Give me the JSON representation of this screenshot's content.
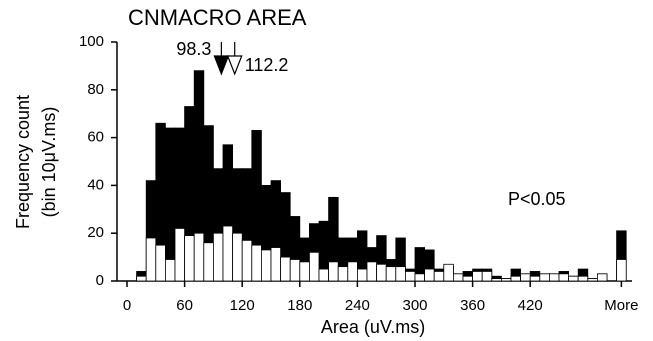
{
  "chart_data": {
    "type": "histogram",
    "title": "CNMACRO AREA",
    "x_label": "Area (uV.ms)",
    "y_label": [
      "Frequency count",
      "(bin 10μV.ms)"
    ],
    "bins": [
      10,
      20,
      30,
      40,
      50,
      60,
      70,
      80,
      90,
      100,
      110,
      120,
      130,
      140,
      150,
      160,
      170,
      180,
      190,
      200,
      210,
      220,
      230,
      240,
      250,
      260,
      270,
      280,
      290,
      300,
      310,
      320,
      330,
      340,
      350,
      360,
      370,
      380,
      390,
      400,
      410,
      420,
      430,
      440,
      450,
      460,
      470,
      480,
      490,
      500,
      510,
      520
    ],
    "series": [
      {
        "color": "#000000",
        "values": [
          4,
          42,
          66,
          64,
          64,
          73,
          88,
          65,
          47,
          57,
          47,
          47,
          63,
          40,
          42,
          37,
          27,
          18,
          24,
          25,
          35,
          18,
          18,
          21,
          14,
          19,
          9,
          18,
          5,
          14,
          13,
          5,
          6,
          3,
          4,
          5,
          5,
          2,
          1,
          5,
          3,
          4,
          3,
          3,
          4,
          2,
          5,
          1,
          3,
          0,
          21
        ]
      },
      {
        "color": "#ffffff",
        "values": [
          2,
          18,
          15,
          9,
          22,
          19,
          20,
          16,
          20,
          23,
          20,
          17,
          15,
          13,
          14,
          10,
          9,
          8,
          12,
          5,
          8,
          6,
          8,
          5,
          8,
          7,
          6,
          6,
          4,
          3,
          5,
          4,
          7,
          3,
          2,
          4,
          4,
          1,
          1,
          2,
          3,
          2,
          3,
          3,
          3,
          2,
          2,
          1,
          3,
          0,
          9
        ]
      }
    ],
    "means": [
      98.3,
      112.2
    ],
    "annotation": "P<0.05",
    "xlim": [
      0,
      520
    ],
    "xticks": [
      0,
      60,
      120,
      180,
      240,
      300,
      360,
      420,
      {
        "value": 515,
        "label": "More"
      }
    ],
    "ylim": [
      0,
      100
    ],
    "yticks": [
      0,
      20,
      40,
      60,
      80,
      100
    ]
  }
}
